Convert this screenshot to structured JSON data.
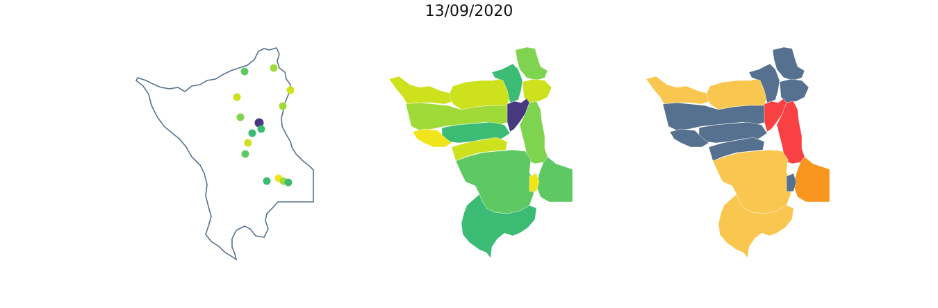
{
  "title": "13/09/2020",
  "colors": {
    "outline": "#56718f",
    "viridis_dark": "#46397f",
    "viridis_teal": "#3cbb75",
    "viridis_green": "#5ec962",
    "viridis_lightgreen": "#7ed34f",
    "viridis_lime": "#a0da39",
    "viridis_yellowgreen": "#cde11d",
    "viridis_yellow": "#f0e51a",
    "cat_slate": "#56718f",
    "cat_gold": "#f9c74f",
    "cat_red": "#f94144",
    "cat_orange": "#f8961e"
  },
  "panels": [
    {
      "name": "points",
      "description": "point-markers"
    },
    {
      "name": "choropleth-continuous"
    },
    {
      "name": "choropleth-categorical"
    }
  ],
  "points": [
    {
      "id": 1,
      "color": "viridis_green"
    },
    {
      "id": 2,
      "color": "viridis_lime"
    },
    {
      "id": 3,
      "color": "viridis_yellowgreen"
    },
    {
      "id": 4,
      "color": "viridis_yellowgreen"
    },
    {
      "id": 5,
      "color": "viridis_lime"
    },
    {
      "id": 6,
      "color": "viridis_lightgreen"
    },
    {
      "id": 7,
      "color": "viridis_dark"
    },
    {
      "id": 8,
      "color": "viridis_teal"
    },
    {
      "id": 9,
      "color": "viridis_teal"
    },
    {
      "id": 10,
      "color": "viridis_yellowgreen"
    },
    {
      "id": 11,
      "color": "viridis_green"
    },
    {
      "id": 12,
      "color": "viridis_teal"
    },
    {
      "id": 13,
      "color": "viridis_yellow"
    },
    {
      "id": 14,
      "color": "viridis_lime"
    },
    {
      "id": 15,
      "color": "viridis_teal"
    }
  ],
  "regions": [
    {
      "id": "nw-strip",
      "value_color": "viridis_yellowgreen",
      "cat_color": "cat_gold"
    },
    {
      "id": "north-central",
      "value_color": "viridis_yellowgreen",
      "cat_color": "cat_gold"
    },
    {
      "id": "far-north",
      "value_color": "viridis_lightgreen",
      "cat_color": "cat_slate"
    },
    {
      "id": "north-mid",
      "value_color": "viridis_teal",
      "cat_color": "cat_slate"
    },
    {
      "id": "ne-upper",
      "value_color": "viridis_yellowgreen",
      "cat_color": "cat_slate"
    },
    {
      "id": "west-band",
      "value_color": "viridis_lime",
      "cat_color": "cat_slate"
    },
    {
      "id": "center-band",
      "value_color": "viridis_teal",
      "cat_color": "cat_slate"
    },
    {
      "id": "center-spot",
      "value_color": "viridis_dark",
      "cat_color": "cat_red"
    },
    {
      "id": "east-strip",
      "value_color": "viridis_lightgreen",
      "cat_color": "cat_red"
    },
    {
      "id": "west-low",
      "value_color": "viridis_yellow",
      "cat_color": "cat_slate"
    },
    {
      "id": "mid-belt",
      "value_color": "viridis_yellowgreen",
      "cat_color": "cat_slate"
    },
    {
      "id": "center-south",
      "value_color": "viridis_green",
      "cat_color": "cat_gold"
    },
    {
      "id": "east-box",
      "value_color": "viridis_green",
      "cat_color": "cat_orange"
    },
    {
      "id": "se-small",
      "value_color": "viridis_yellow",
      "cat_color": "cat_slate"
    },
    {
      "id": "south-lobe",
      "value_color": "viridis_teal",
      "cat_color": "cat_gold"
    }
  ]
}
